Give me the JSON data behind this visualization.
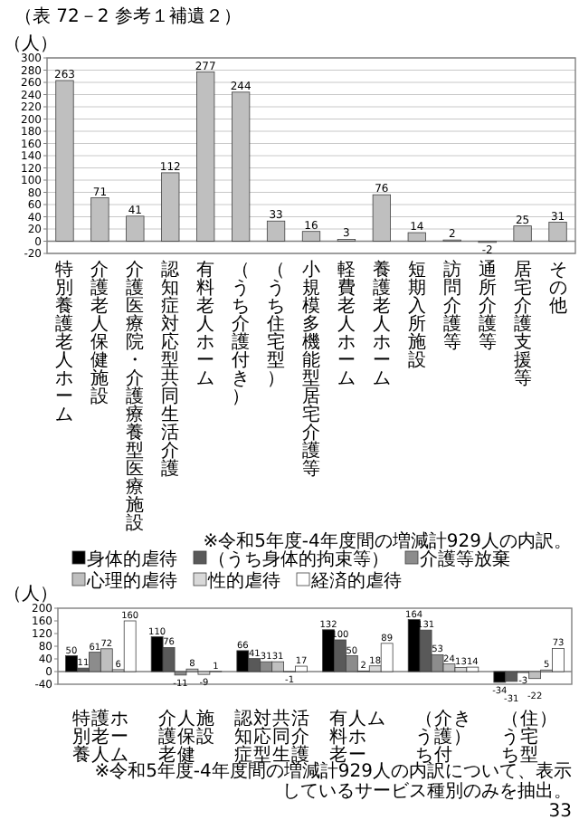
{
  "chart_data": [
    {
      "type": "bar",
      "title": "（表 72－2 参考１補遺２）",
      "ylabel": "（人）",
      "categories": [
        "特別養護老人ホーム",
        "介護老人保健施設",
        "介護医療院・介護療養型医療施設",
        "認知症対応型共同生活介護",
        "有料老人ホーム",
        "（うち介護付き）",
        "（うち住宅型）",
        "小規模多機能型居宅介護等",
        "軽費老人ホーム",
        "養護老人ホーム",
        "短期入所施設",
        "訪問介護等",
        "通所介護等",
        "居宅介護支援等",
        "その他"
      ],
      "values": [
        263,
        71,
        41,
        112,
        277,
        244,
        33,
        16,
        3,
        76,
        14,
        2,
        -2,
        25,
        31
      ],
      "color": "#bfbfbf",
      "ylim": [
        -20,
        300
      ],
      "yticks": [
        -20,
        0,
        20,
        40,
        60,
        80,
        100,
        120,
        140,
        160,
        180,
        200,
        220,
        240,
        260,
        280,
        300
      ],
      "grid": "y",
      "data_labels": true,
      "annotations": [
        "※令和5年度-4年度間の増減計929人の内訳。"
      ]
    },
    {
      "type": "bar",
      "ylabel": "（人）",
      "categories": [
        "特別養護老人ホーム",
        "介護老人保健施設",
        "認知症対応型共同生活介護",
        "有料老人ホーム",
        "（うち介護付き）",
        "（うち住宅型）"
      ],
      "series": [
        {
          "name": "身体的虐待",
          "color": "#000000",
          "values": [
            50,
            110,
            66,
            132,
            164,
            -34
          ]
        },
        {
          "name": "（うち身体的拘束等）",
          "color": "#595959",
          "values": [
            11,
            76,
            41,
            100,
            131,
            -31
          ]
        },
        {
          "name": "介護等放棄",
          "color": "#8c8c8c",
          "values": [
            61,
            -11,
            31,
            50,
            53,
            -3
          ]
        },
        {
          "name": "心理的虐待",
          "color": "#bfbfbf",
          "values": [
            72,
            8,
            31,
            2,
            24,
            -22
          ]
        },
        {
          "name": "性的虐待",
          "color": "#d9d9d9",
          "values": [
            6,
            -9,
            -1,
            18,
            13,
            5
          ]
        },
        {
          "name": "経済的虐待",
          "color": "#ffffff",
          "values": [
            160,
            1,
            17,
            89,
            14,
            73
          ]
        }
      ],
      "ylim": [
        -40,
        200
      ],
      "yticks": [
        -40,
        0,
        40,
        80,
        120,
        160,
        200
      ],
      "legend": "top",
      "data_labels": true,
      "annotations": [
        "※令和5年度-4年度間の増減計929人の内訳について、表示しているサービス種別のみを抽出。",
        "33"
      ]
    }
  ]
}
